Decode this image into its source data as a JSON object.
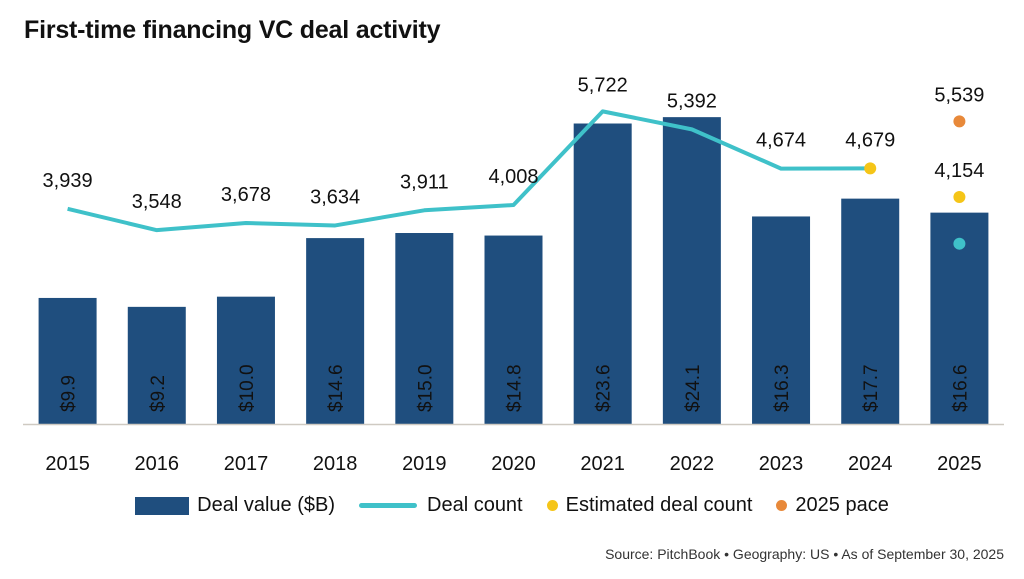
{
  "title": "First-time financing VC deal activity",
  "source": "Source: PitchBook  •  Geography: US  •  As of September 30, 2025",
  "colors": {
    "bar": "#1f4e7e",
    "line": "#3fc1c9",
    "estimated": "#f5c518",
    "pace": "#e8893a"
  },
  "legend": [
    {
      "label": "Deal value ($B)",
      "type": "bar"
    },
    {
      "label": "Deal count",
      "type": "line"
    },
    {
      "label": "Estimated deal count",
      "type": "dot-estimated"
    },
    {
      "label": "2025 pace",
      "type": "dot-pace"
    }
  ],
  "chart_data": {
    "type": "bar",
    "title": "First-time financing VC deal activity",
    "categories": [
      "2015",
      "2016",
      "2017",
      "2018",
      "2019",
      "2020",
      "2021",
      "2022",
      "2023",
      "2024",
      "2025"
    ],
    "series": [
      {
        "name": "Deal value ($B)",
        "type": "bar",
        "values": [
          9.9,
          9.2,
          10.0,
          14.6,
          15.0,
          14.8,
          23.6,
          24.1,
          16.3,
          17.7,
          16.6
        ],
        "labels": [
          "$9.9",
          "$9.2",
          "$10.0",
          "$14.6",
          "$15.0",
          "$14.8",
          "$23.6",
          "$24.1",
          "$16.3",
          "$17.7",
          "$16.6"
        ]
      },
      {
        "name": "Deal count",
        "type": "line",
        "values": [
          3939,
          3548,
          3678,
          3634,
          3911,
          4008,
          5722,
          5392,
          4674,
          4679,
          null
        ],
        "labels": [
          "3,939",
          "3,548",
          "3,678",
          "3,634",
          "3,911",
          "4,008",
          "5,722",
          "5,392",
          "4,674",
          "4,679",
          ""
        ]
      },
      {
        "name": "Estimated deal count",
        "type": "scatter",
        "points": [
          {
            "x": "2024",
            "y": 4679
          },
          {
            "x": "2025",
            "y": 4154,
            "label": "4,154"
          }
        ]
      },
      {
        "name": "2025 pace",
        "type": "scatter",
        "points": [
          {
            "x": "2025",
            "y": 5539,
            "label": "5,539"
          }
        ]
      },
      {
        "name": "Deal count (2025 YTD)",
        "type": "scatter",
        "points": [
          {
            "x": "2025",
            "y": 3300
          }
        ]
      }
    ],
    "bar_axis_range": [
      0,
      30
    ],
    "count_axis_range": [
      0,
      7760
    ],
    "grid": false,
    "legend_position": "bottom"
  }
}
